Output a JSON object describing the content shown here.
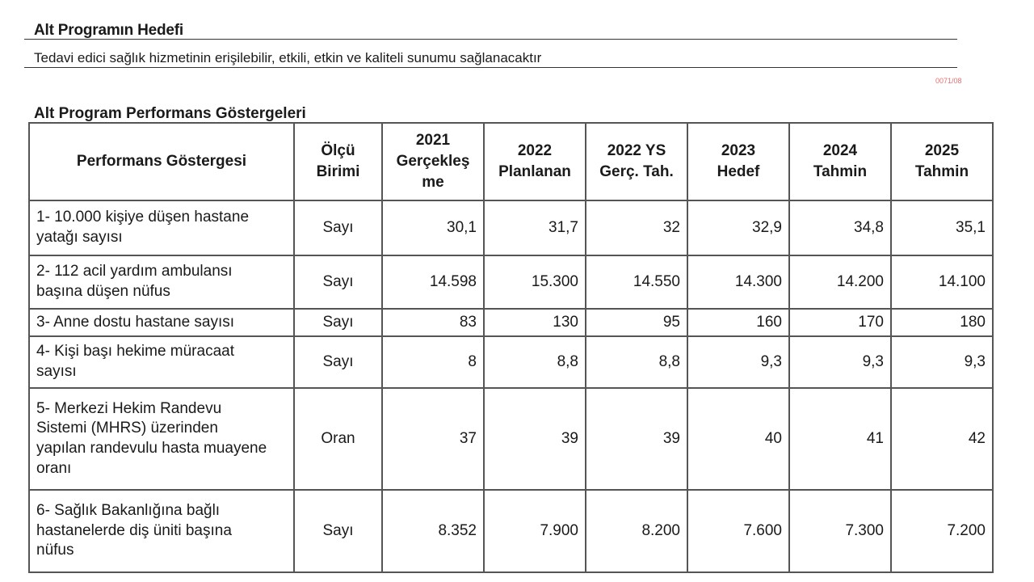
{
  "subprogram": {
    "goal_title": "Alt Programın Hedefi",
    "goal_text": "Tedavi edici sağlık hizmetinin erişilebilir, etkili, etkin ve kaliteli sunumu sağlanacaktır",
    "stamp": "0071/08"
  },
  "indicators": {
    "title": "Alt Program Performans Göstergeleri",
    "headers": {
      "indicator": "Performans Göstergesi",
      "unit": [
        "Ölçü",
        "Birimi"
      ],
      "y2021": [
        "2021",
        "Gerçekleş",
        "me"
      ],
      "y2022": [
        "2022",
        "Planlanan"
      ],
      "y2022ys": [
        "2022 YS",
        "Gerç. Tah."
      ],
      "y2023": [
        "2023",
        "Hedef"
      ],
      "y2024": [
        "2024",
        "Tahmin"
      ],
      "y2025": [
        "2025",
        "Tahmin"
      ]
    },
    "rows": [
      {
        "label": [
          "1- 10.000 kişiye düşen hastane",
          "yatağı sayısı"
        ],
        "unit": "Sayı",
        "values": [
          "30,1",
          "31,7",
          "32",
          "32,9",
          "34,8",
          "35,1"
        ]
      },
      {
        "label": [
          "2- 112 acil yardım ambulansı",
          "başına düşen nüfus"
        ],
        "unit": "Sayı",
        "values": [
          "14.598",
          "15.300",
          "14.550",
          "14.300",
          "14.200",
          "14.100"
        ]
      },
      {
        "label": [
          "3- Anne dostu hastane sayısı"
        ],
        "unit": "Sayı",
        "values": [
          "83",
          "130",
          "95",
          "160",
          "170",
          "180"
        ]
      },
      {
        "label": [
          "4- Kişi başı hekime müracaat",
          "sayısı"
        ],
        "unit": "Sayı",
        "values": [
          "8",
          "8,8",
          "8,8",
          "9,3",
          "9,3",
          "9,3"
        ]
      },
      {
        "label": [
          "5- Merkezi Hekim Randevu",
          "Sistemi (MHRS) üzerinden",
          "yapılan randevulu hasta muayene",
          "oranı"
        ],
        "unit": "Oran",
        "values": [
          "37",
          "39",
          "39",
          "40",
          "41",
          "42"
        ]
      },
      {
        "label": [
          "6- Sağlık Bakanlığına bağlı",
          "hastanelerde diş üniti başına",
          "nüfus"
        ],
        "unit": "Sayı",
        "values": [
          "8.352",
          "7.900",
          "8.200",
          "7.600",
          "7.300",
          "7.200"
        ]
      }
    ]
  }
}
